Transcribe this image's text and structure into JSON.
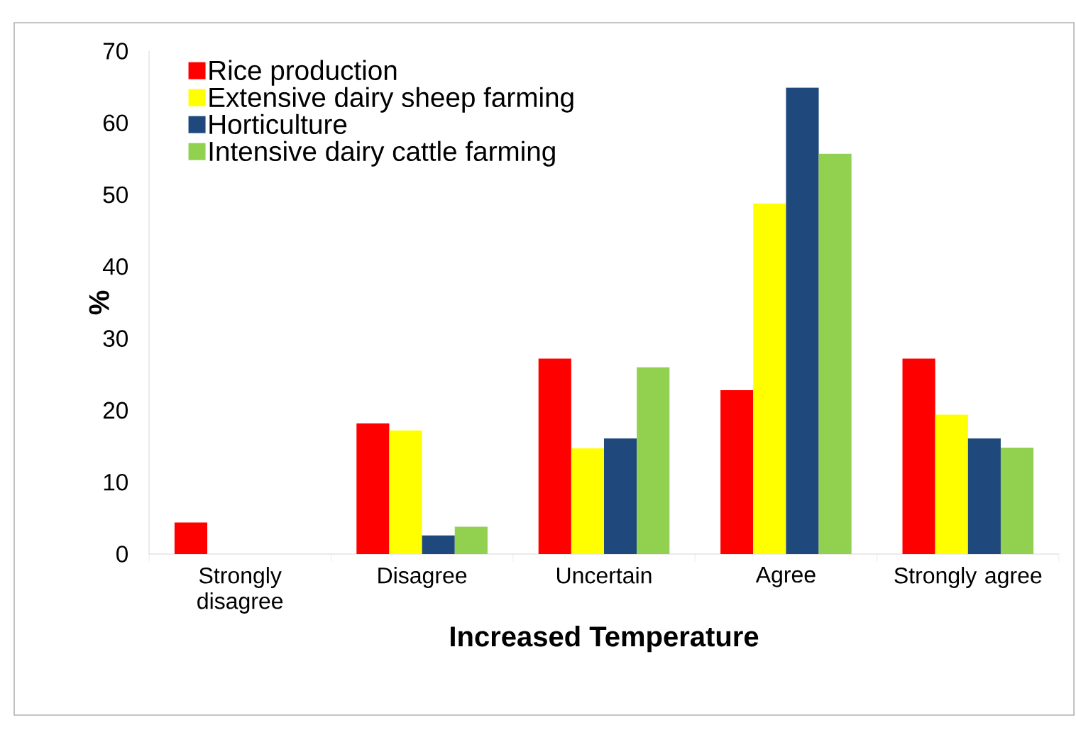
{
  "chart_data": {
    "type": "bar",
    "xlabel": "Increased Temperature",
    "ylabel": "%",
    "categories": [
      "Strongly disagree",
      "Disagree",
      "Uncertain",
      "Agree",
      "Strongly agree"
    ],
    "series": [
      {
        "name": "Rice production",
        "color": "#ff0000",
        "values": [
          4.4,
          18.2,
          27.2,
          22.8,
          27.2
        ]
      },
      {
        "name": "Extensive dairy sheep farming",
        "color": "#ffff00",
        "values": [
          0,
          17.2,
          14.7,
          48.8,
          19.4
        ]
      },
      {
        "name": "Horticulture",
        "color": "#1f497d",
        "values": [
          0,
          2.6,
          16.1,
          64.9,
          16.1
        ]
      },
      {
        "name": "Intensive dairy cattle farming",
        "color": "#92d050",
        "values": [
          0,
          3.8,
          26.0,
          55.7,
          14.8
        ]
      }
    ],
    "ylim": [
      0,
      70
    ],
    "yticks": [
      0,
      10,
      20,
      30,
      40,
      50,
      60,
      70
    ],
    "legend": "top left"
  }
}
